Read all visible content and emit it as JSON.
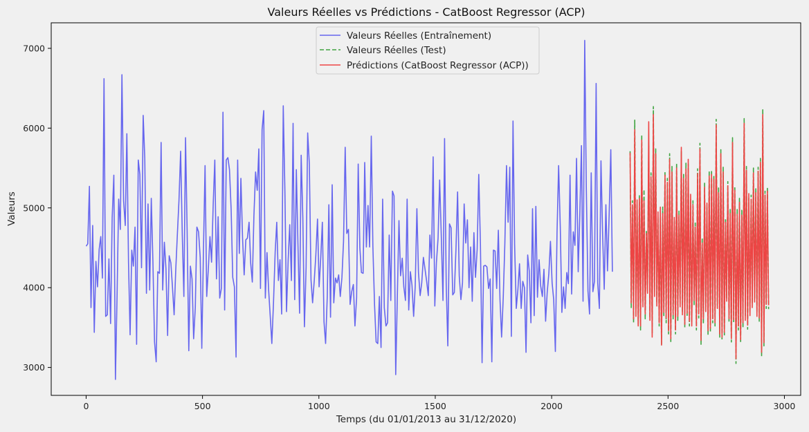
{
  "chart_data": {
    "type": "line",
    "title": "Valeurs Réelles vs Prédictions - CatBoost Regressor (ACP)",
    "xlabel": "Temps (du 01/01/2013 au 31/12/2020)",
    "ylabel": "Valeurs",
    "xlim": [
      -150,
      3070
    ],
    "ylim": [
      2650,
      7320
    ],
    "xticks": [
      0,
      500,
      1000,
      1500,
      2000,
      2500,
      3000
    ],
    "yticks": [
      3000,
      4000,
      5000,
      6000,
      7000
    ],
    "grid": false,
    "legend_position": "top-center",
    "series": [
      {
        "name": "Valeurs Réelles (Entraînement)",
        "color": "#6666ee",
        "style": "solid",
        "x_start": 0,
        "x_step": 7,
        "values": [
          4520,
          4550,
          5270,
          3750,
          4780,
          3440,
          4330,
          4010,
          4480,
          4640,
          4120,
          6620,
          3640,
          3660,
          4360,
          3550,
          4880,
          5410,
          2850,
          3920,
          5110,
          4730,
          6670,
          5090,
          4780,
          5930,
          4320,
          3410,
          4470,
          4270,
          4760,
          3290,
          5600,
          5420,
          4250,
          6160,
          5620,
          3930,
          5050,
          3970,
          5120,
          4310,
          3320,
          3070,
          4200,
          4180,
          5820,
          3970,
          4570,
          4240,
          3400,
          4400,
          4310,
          4010,
          3660,
          4210,
          4670,
          5090,
          5710,
          4660,
          3890,
          5880,
          4710,
          3210,
          4270,
          4110,
          3360,
          3750,
          4760,
          4700,
          4380,
          3240,
          4470,
          5530,
          3890,
          4230,
          4640,
          4320,
          5050,
          5600,
          4110,
          4890,
          3870,
          3990,
          6200,
          3720,
          5600,
          5630,
          5480,
          4980,
          4130,
          4010,
          3130,
          5600,
          4430,
          5370,
          4620,
          4160,
          4600,
          4620,
          4820,
          4310,
          4070,
          4900,
          5450,
          5220,
          5740,
          3990,
          5980,
          6220,
          3870,
          4440,
          3980,
          3640,
          3300,
          3810,
          4440,
          4820,
          4090,
          4350,
          3670,
          6280,
          5200,
          3700,
          4350,
          4790,
          4090,
          6060,
          3850,
          5480,
          4560,
          3680,
          5660,
          4870,
          3510,
          4250,
          5940,
          5550,
          4100,
          3810,
          4090,
          4410,
          4860,
          4010,
          4380,
          4820,
          3570,
          3300,
          3890,
          5040,
          3630,
          5290,
          3810,
          4120,
          4060,
          4160,
          3890,
          4130,
          4580,
          5760,
          4680,
          4730,
          3790,
          3950,
          4040,
          3520,
          3870,
          5550,
          4500,
          4190,
          4180,
          5570,
          4510,
          5030,
          4510,
          5900,
          4520,
          3790,
          3320,
          3300,
          3890,
          3250,
          5110,
          3750,
          3520,
          3560,
          4660,
          3840,
          5210,
          5150,
          2910,
          3870,
          4840,
          4150,
          4370,
          4010,
          3840,
          5110,
          3720,
          4200,
          4030,
          3640,
          4020,
          4990,
          4190,
          3900,
          4060,
          4380,
          4230,
          4080,
          3900,
          4660,
          4370,
          5640,
          3770,
          4310,
          4620,
          5350,
          4640,
          3840,
          5870,
          4030,
          3270,
          4800,
          4750,
          3910,
          3940,
          4490,
          5200,
          4150,
          3850,
          4060,
          5050,
          4560,
          4850,
          4000,
          4510,
          3830,
          4690,
          4130,
          4480,
          5420,
          4550,
          3060,
          4270,
          4280,
          4260,
          3990,
          4110,
          3070,
          4470,
          4460,
          3990,
          4720,
          3850,
          3380,
          3880,
          4550,
          5530,
          4820,
          5510,
          3390,
          6090,
          4540,
          3740,
          3980,
          4300,
          3740,
          4080,
          4000,
          3190,
          4410,
          4210,
          3560,
          4990,
          3650,
          5020,
          3880,
          4350,
          4020,
          3890,
          4230,
          3580,
          3940,
          4180,
          4580,
          4060,
          3850,
          3200,
          4690,
          5530,
          4760,
          3690,
          4010,
          3740,
          4190,
          4050,
          5410,
          3920,
          4700,
          4530,
          5620,
          4200,
          4910,
          5780,
          3830,
          7100,
          5260,
          3960,
          3670,
          5440,
          3950,
          4080,
          6560,
          4060,
          3740,
          5590,
          4660,
          3980,
          5040,
          4210,
          4910,
          5730,
          4200
        ]
      },
      {
        "name": "Valeurs Réelles (Test)",
        "color": "#3fa33f",
        "style": "dashed",
        "x_start": 2337,
        "x_step": 5,
        "values": [
          5710,
          3750,
          5090,
          3560,
          6100,
          3730,
          5050,
          3540,
          5160,
          3470,
          5910,
          3820,
          5230,
          3610,
          4720,
          3990,
          5780,
          3620,
          5440,
          3430,
          6270,
          3950,
          5740,
          3810,
          4890,
          3520,
          4880,
          3290,
          5010,
          3650,
          5460,
          3560,
          5370,
          3420,
          5680,
          3310,
          5520,
          3610,
          4830,
          3420,
          5560,
          3590,
          4960,
          3800,
          5710,
          3690,
          5420,
          3500,
          5560,
          3640,
          5550,
          3520,
          5120,
          3570,
          5090,
          3780,
          4810,
          3470,
          5490,
          3620,
          5810,
          3290,
          4610,
          3560,
          5310,
          3760,
          5000,
          3410,
          5460,
          3440,
          5470,
          3560,
          5400,
          3520,
          6110,
          3780,
          5250,
          3380,
          5730,
          3340,
          5510,
          3390,
          4870,
          3870,
          5330,
          3570,
          4980,
          3320,
          5880,
          3560,
          5270,
          3050,
          4980,
          3470,
          5120,
          3310,
          4970,
          3500,
          6120,
          3650,
          5520,
          3480,
          5120,
          3700,
          5160,
          3800,
          5500,
          3870,
          5240,
          3690,
          5510,
          3580,
          5620,
          3140,
          6230,
          3270,
          5210,
          3740,
          5260,
          3730
        ]
      },
      {
        "name": "Prédictions (CatBoost Regressor (ACP))",
        "color": "#ee4444",
        "style": "solid",
        "x_start": 2337,
        "x_step": 5,
        "values": [
          5690,
          3810,
          5040,
          3610,
          5980,
          3640,
          5100,
          3520,
          5120,
          3520,
          5850,
          3760,
          5090,
          3670,
          4680,
          3930,
          6080,
          3590,
          5390,
          3380,
          6170,
          3890,
          5680,
          3770,
          4950,
          3560,
          5010,
          3280,
          4930,
          3690,
          5410,
          3620,
          5320,
          3460,
          5610,
          3360,
          5450,
          3660,
          4880,
          3470,
          5500,
          3640,
          4910,
          3760,
          5760,
          3660,
          5370,
          3540,
          5490,
          3680,
          5610,
          3580,
          5170,
          3520,
          5040,
          3840,
          4760,
          3520,
          5430,
          3670,
          5740,
          3340,
          4560,
          3610,
          5260,
          3700,
          5060,
          3460,
          5400,
          3490,
          5420,
          3610,
          5360,
          3560,
          6040,
          3740,
          5190,
          3420,
          5680,
          3380,
          5450,
          3440,
          4820,
          3830,
          5280,
          3610,
          4930,
          3360,
          5820,
          3600,
          5220,
          3110,
          4920,
          3520,
          5070,
          3350,
          4910,
          3560,
          6060,
          3590,
          5470,
          3530,
          5180,
          3650,
          5110,
          3750,
          5440,
          3820,
          5190,
          3640,
          5460,
          3620,
          5570,
          3190,
          6170,
          3310,
          5160,
          3790,
          5210,
          3780
        ]
      }
    ]
  }
}
